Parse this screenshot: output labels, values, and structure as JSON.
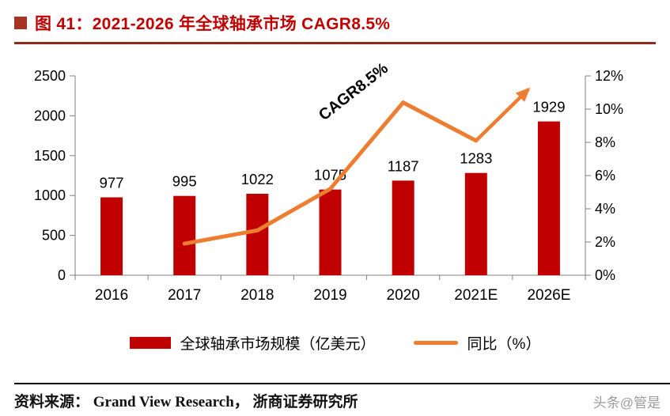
{
  "header": {
    "title": "图 41：2021-2026 年全球轴承市场 CAGR8.5%"
  },
  "theme": {
    "title_color": "#c00000",
    "title_divider_color": "#8e2a1c",
    "bar_color": "#c00000",
    "line_color": "#ed7d31",
    "axis_color": "#808080"
  },
  "chart_data": {
    "type": "bar",
    "title": "2021-2026 年全球轴承市场 CAGR8.5%",
    "categories": [
      "2016",
      "2017",
      "2018",
      "2019",
      "2020",
      "2021E",
      "2026E"
    ],
    "series": [
      {
        "name": "全球轴承市场规模（亿美元）",
        "type": "bar",
        "axis": "left",
        "color": "#c00000",
        "values": [
          977,
          995,
          1022,
          1075,
          1187,
          1283,
          1929
        ]
      },
      {
        "name": "同比（%）",
        "type": "line",
        "axis": "right",
        "color": "#ed7d31",
        "values": [
          null,
          1.9,
          2.7,
          5.2,
          10.4,
          8.1,
          null
        ]
      }
    ],
    "annotation": {
      "text": "CAGR8.5%",
      "x_index": 3.36,
      "value": 10.81,
      "angle": -38
    },
    "trend_arrow": {
      "from_index": 5,
      "from_value": 8.1,
      "to_index": 5.72,
      "to_value": 11.2
    },
    "left_axis": {
      "min": 0,
      "max": 2500,
      "step": 500,
      "ticks": [
        "0",
        "500",
        "1000",
        "1500",
        "2000",
        "2500"
      ]
    },
    "right_axis": {
      "min": 0,
      "max": 12,
      "step": 2,
      "ticks": [
        "0%",
        "2%",
        "4%",
        "6%",
        "8%",
        "10%",
        "12%"
      ]
    },
    "legend_position": "bottom",
    "grid": false
  },
  "footer": {
    "source": "资料来源： Grand View Research， 浙商证券研究所",
    "watermark": "头条@管是"
  }
}
